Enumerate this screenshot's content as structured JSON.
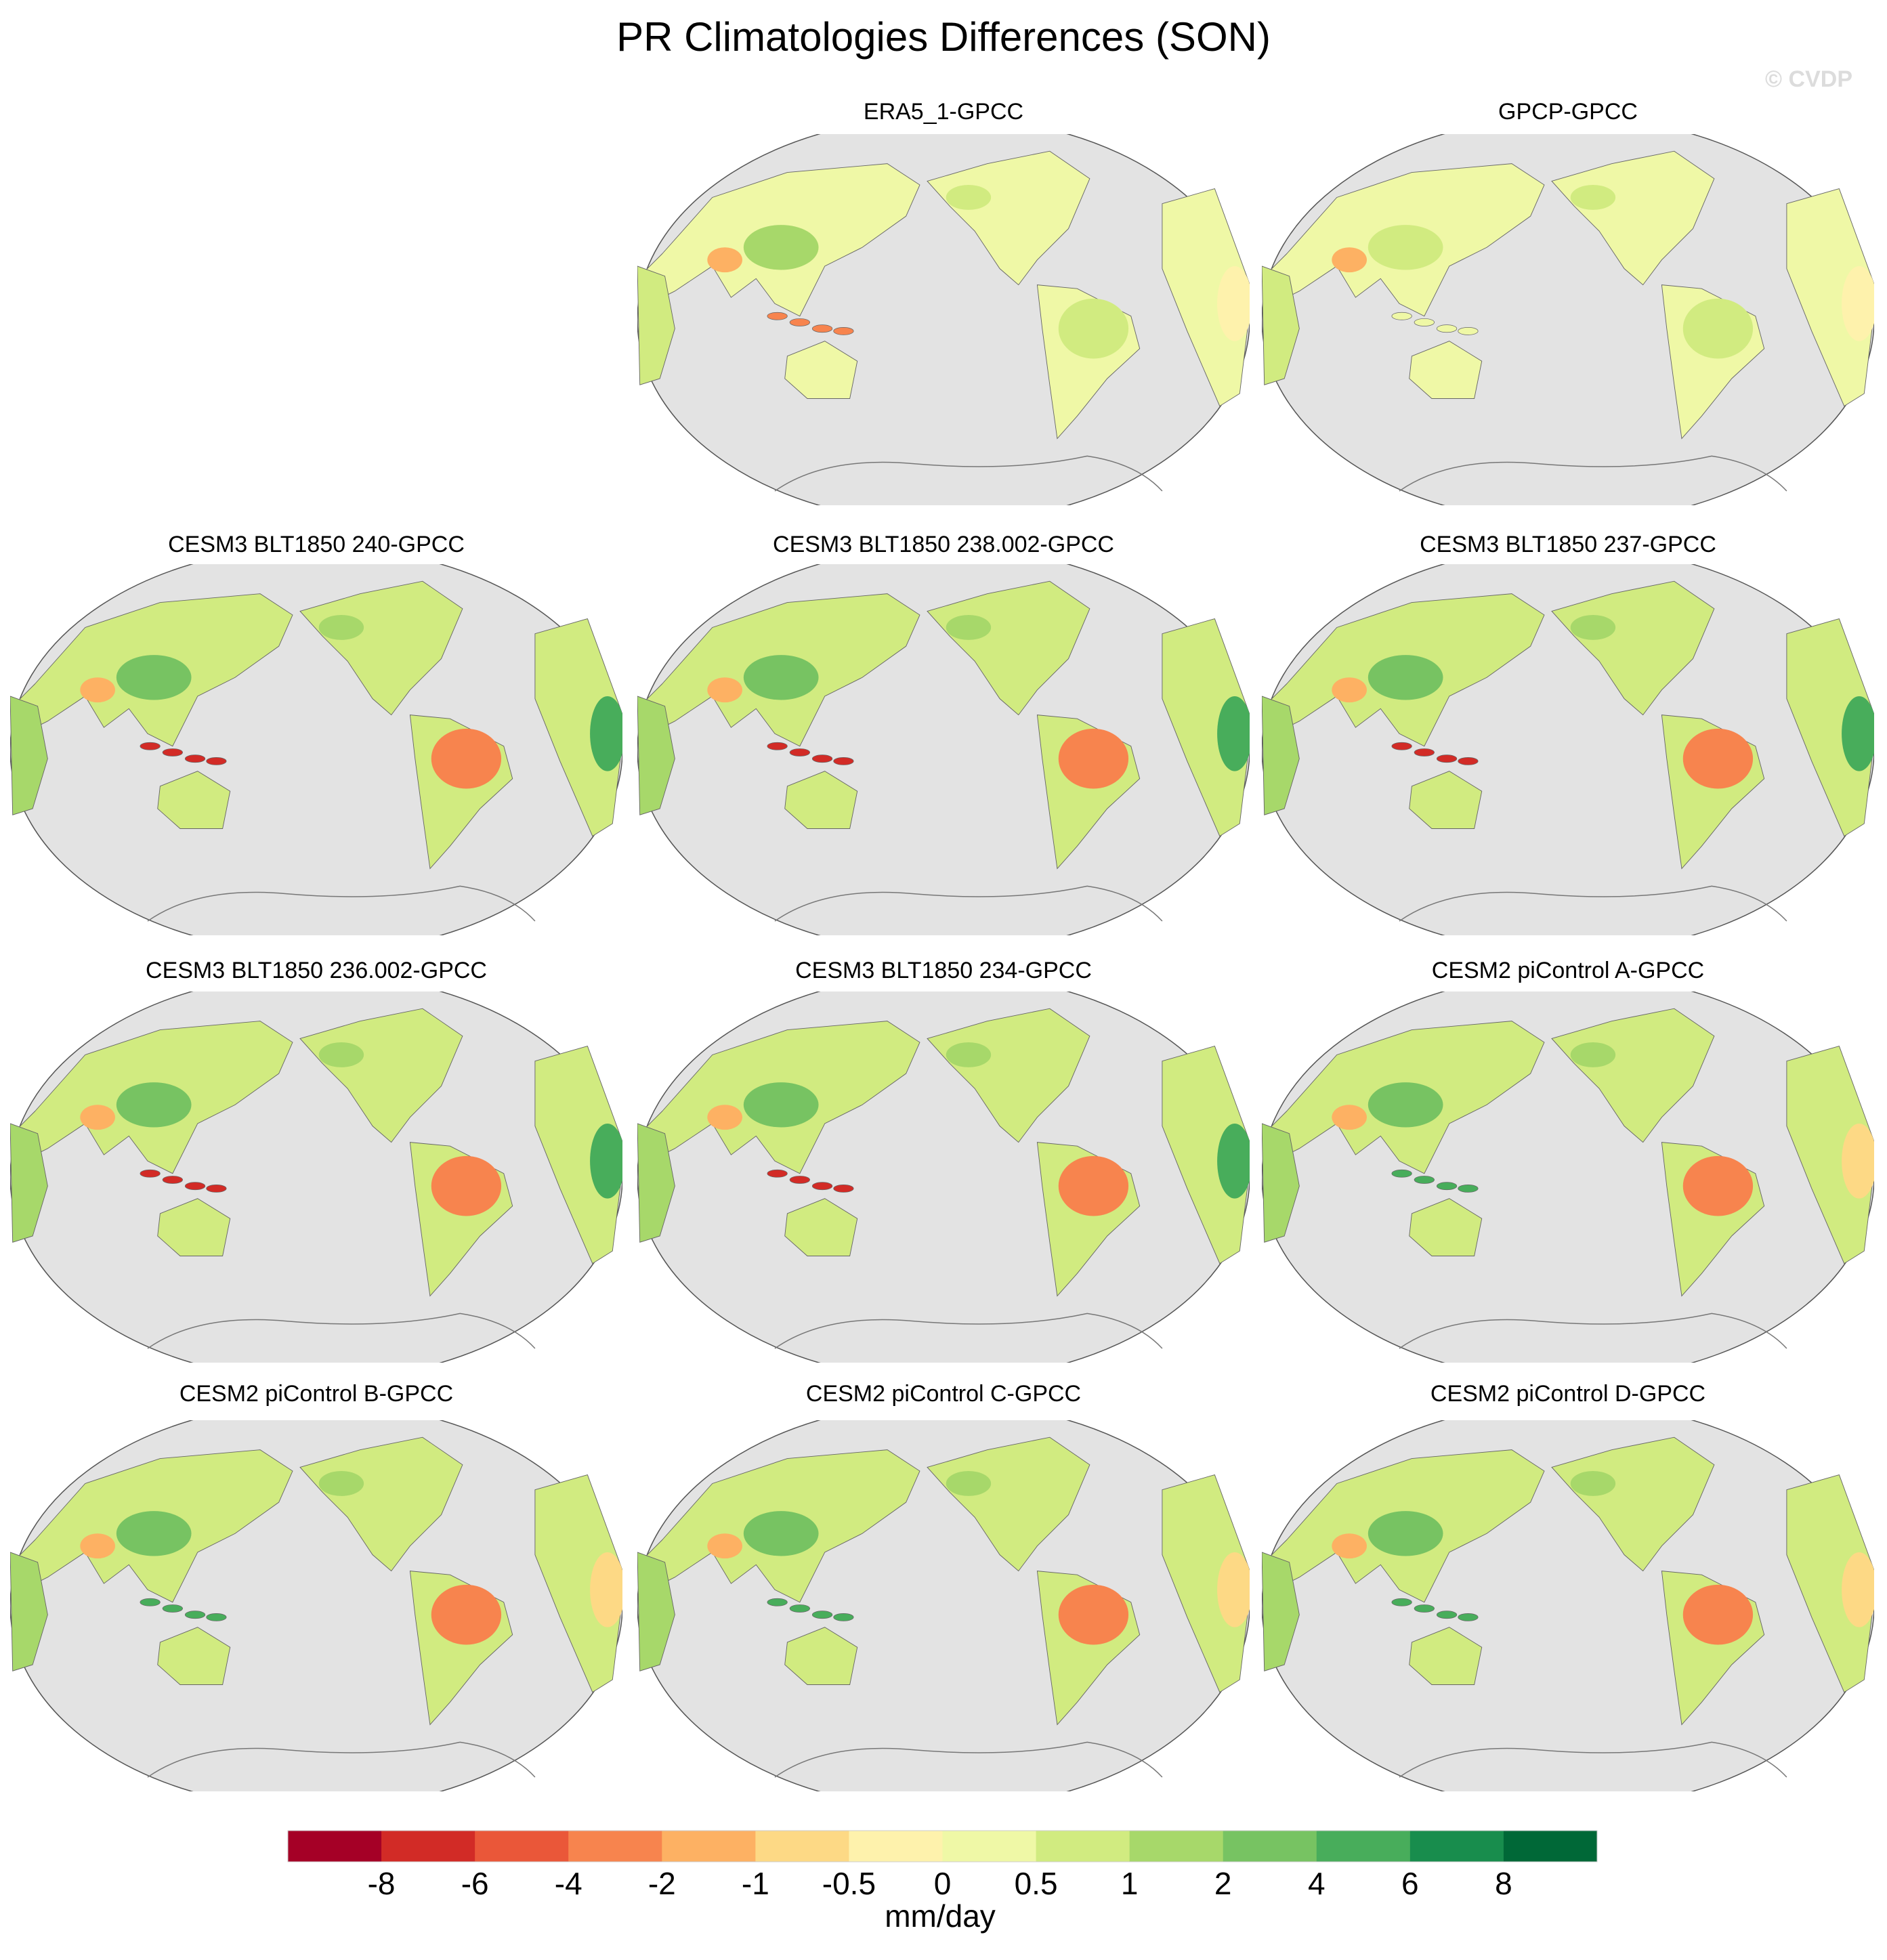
{
  "title": "PR Climatologies Differences (SON)",
  "watermark": "© CVDP",
  "panels": [
    {
      "title": "ERA5_1-GPCC",
      "style": "obs1"
    },
    {
      "title": "GPCP-GPCC",
      "style": "obs2"
    },
    {
      "title": "CESM3 BLT1850 240-GPCC",
      "style": "cesm3"
    },
    {
      "title": "CESM3 BLT1850 238.002-GPCC",
      "style": "cesm3"
    },
    {
      "title": "CESM3 BLT1850 237-GPCC",
      "style": "cesm3"
    },
    {
      "title": "CESM3 BLT1850 236.002-GPCC",
      "style": "cesm3"
    },
    {
      "title": "CESM3 BLT1850 234-GPCC",
      "style": "cesm3"
    },
    {
      "title": "CESM2 piControl A-GPCC",
      "style": "cesm2"
    },
    {
      "title": "CESM2 piControl B-GPCC",
      "style": "cesm2"
    },
    {
      "title": "CESM2 piControl C-GPCC",
      "style": "cesm2"
    },
    {
      "title": "CESM2 piControl D-GPCC",
      "style": "cesm2"
    }
  ],
  "chart_data": {
    "type": "heatmap",
    "title": "PR Climatologies Differences (SON)",
    "projection": "global map, Pacific-centered",
    "colorbar": {
      "units": "mm/day",
      "tick_labels": [
        "-8",
        "-6",
        "-4",
        "-2",
        "-1",
        "-0.5",
        "0",
        "0.5",
        "1",
        "2",
        "4",
        "6",
        "8"
      ],
      "colors": [
        "#a50026",
        "#d22b26",
        "#ea5739",
        "#f7844e",
        "#fdb163",
        "#fdd985",
        "#fef2ac",
        "#eff8a6",
        "#d1eb80",
        "#a7d86a",
        "#77c362",
        "#48ad5b",
        "#188d4d",
        "#006837"
      ]
    },
    "ocean_color": "#e3e3e3"
  }
}
